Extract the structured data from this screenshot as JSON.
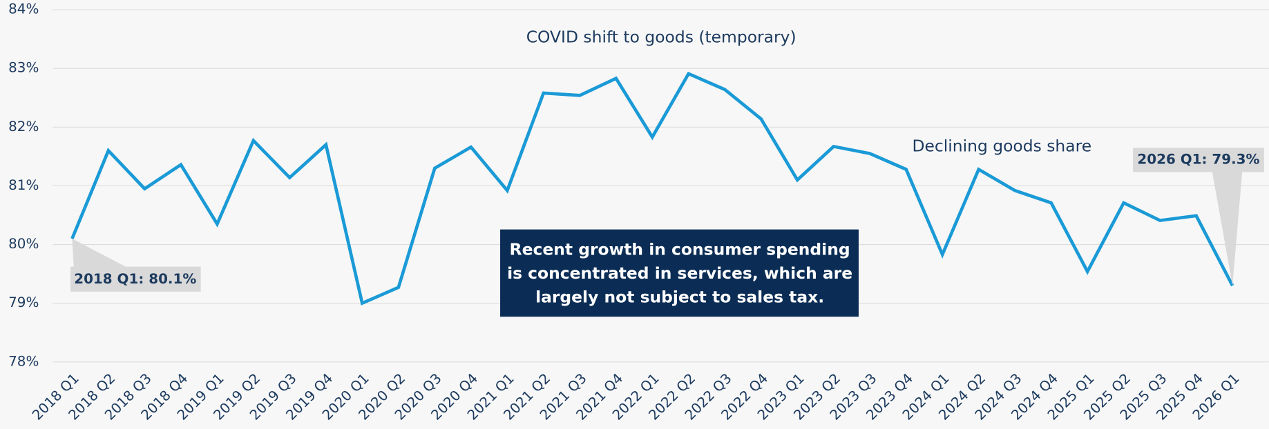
{
  "chart_data": {
    "type": "line",
    "categories": [
      "2018 Q1",
      "2018 Q2",
      "2018 Q3",
      "2018 Q4",
      "2019 Q1",
      "2019 Q2",
      "2019 Q3",
      "2019 Q4",
      "2020 Q1",
      "2020 Q2",
      "2020 Q3",
      "2020 Q4",
      "2021 Q1",
      "2021 Q2",
      "2021 Q3",
      "2021 Q4",
      "2022 Q1",
      "2022 Q2",
      "2022 Q3",
      "2022 Q4",
      "2023 Q1",
      "2023 Q2",
      "2023 Q3",
      "2023 Q4",
      "2024 Q1",
      "2024 Q2",
      "2024 Q3",
      "2024 Q4",
      "2025 Q1",
      "2025 Q2",
      "2025 Q3",
      "2025 Q4",
      "2026 Q1"
    ],
    "series": [
      {
        "color": "#1a9ad6",
        "values": [
          80.1,
          81.6,
          80.95,
          81.36,
          80.35,
          81.77,
          81.14,
          81.7,
          79.0,
          79.27,
          81.3,
          81.66,
          80.92,
          82.58,
          82.54,
          82.83,
          81.83,
          82.91,
          82.64,
          82.14,
          81.1,
          81.67,
          81.55,
          81.28,
          79.83,
          81.28,
          80.92,
          80.71,
          79.54,
          80.71,
          80.41,
          80.49,
          79.3
        ]
      }
    ],
    "ylim": [
      78,
      84
    ],
    "yticks": [
      {
        "value": 78,
        "label": "78%"
      },
      {
        "value": 79,
        "label": "79%"
      },
      {
        "value": 80,
        "label": "80%"
      },
      {
        "value": 81,
        "label": "81%"
      },
      {
        "value": 82,
        "label": "82%"
      },
      {
        "value": 83,
        "label": "83%"
      },
      {
        "value": 84,
        "label": "84%"
      }
    ],
    "grid": true,
    "annotations": [
      "COVID shift to goods (temporary)",
      "Declining goods share"
    ],
    "callouts": [
      "2018 Q1: 80.1%",
      "2026 Q1: 79.3%"
    ],
    "box_text": [
      "Recent growth in consumer spending",
      "is concentrated in services, which are",
      "largely not subject to sales tax."
    ]
  }
}
